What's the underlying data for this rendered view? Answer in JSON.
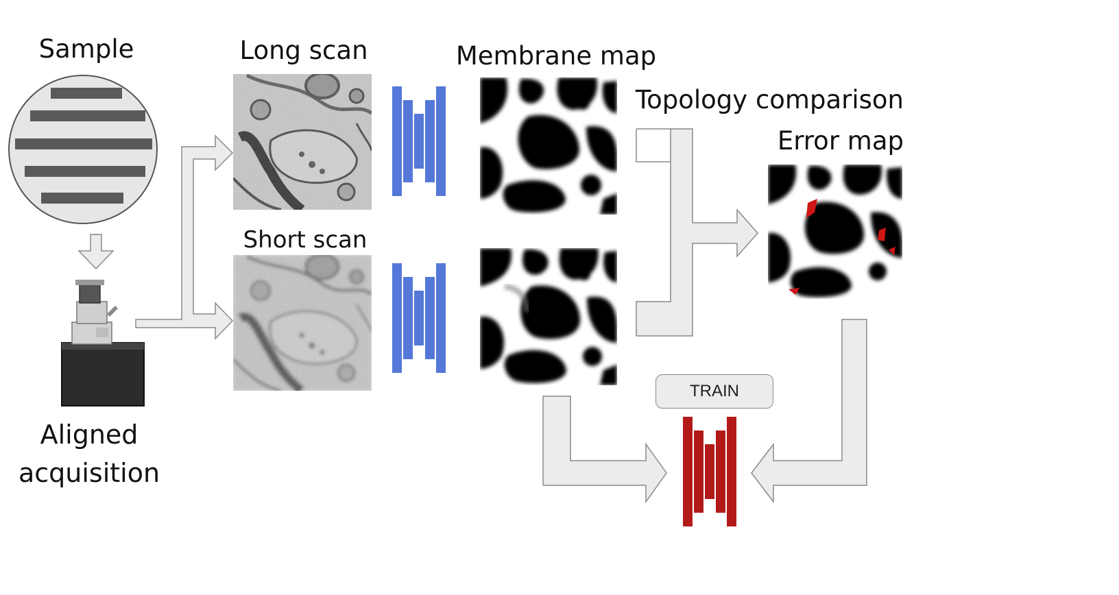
{
  "labels": {
    "sample": "Sample",
    "long_scan": "Long scan",
    "short_scan": "Short scan",
    "membrane_map": "Membrane map",
    "topology_comparison": "Topology comparison",
    "error_map": "Error map",
    "aligned": "Aligned",
    "acquisition": "acquisition",
    "train": "TRAIN"
  },
  "colors": {
    "network_blue": "#5578d8",
    "network_red": "#b21a1a",
    "arrow_fill": "#ececec",
    "arrow_stroke": "#8a8a8a",
    "error_highlight": "#d01515"
  },
  "icons": {
    "sample": "sample-slices-icon",
    "microscope": "electron-microscope-icon",
    "network": "encoder-decoder-network-icon"
  }
}
